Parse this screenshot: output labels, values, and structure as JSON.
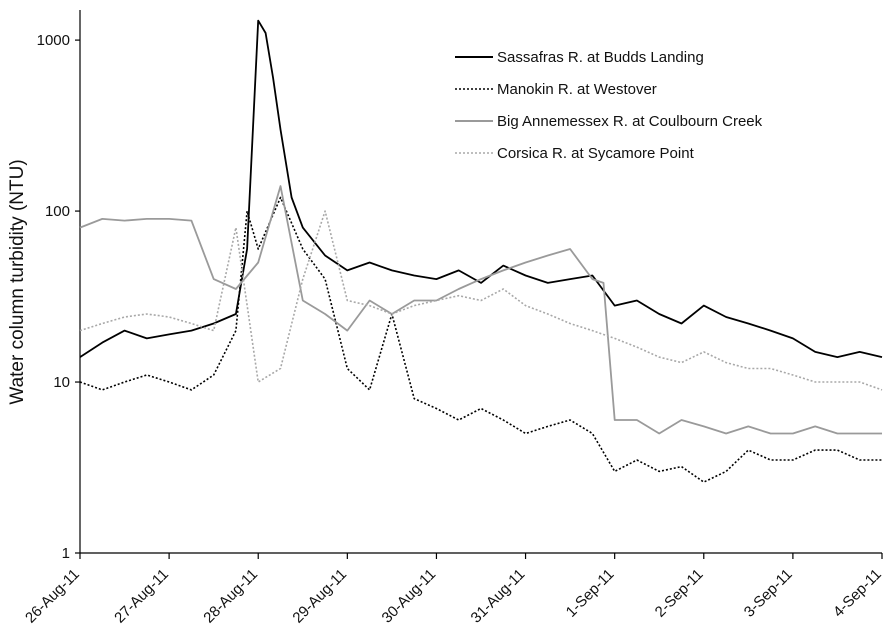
{
  "chart_data": {
    "type": "line",
    "title": "",
    "xlabel": "",
    "ylabel": "Water column turbidity (NTU)",
    "y_scale": "log",
    "ylim": [
      1,
      1500
    ],
    "y_ticks": [
      1,
      10,
      100,
      1000
    ],
    "y_tick_labels": [
      "1",
      "10",
      "100",
      "1000"
    ],
    "x_tick_labels": [
      "26-Aug-11",
      "27-Aug-11",
      "28-Aug-11",
      "29-Aug-11",
      "30-Aug-11",
      "31-Aug-11",
      "1-Sep-11",
      "2-Sep-11",
      "3-Sep-11",
      "4-Sep-11"
    ],
    "xlim": [
      "26-Aug-11",
      "4-Sep-11"
    ],
    "grid": false,
    "legend_position": "top-right",
    "series": [
      {
        "name": "Sassafras R. at Budds Landing",
        "color": "#000000",
        "style": "solid",
        "x": [
          "26-Aug-11",
          "26-Aug-11 06:00",
          "26-Aug-11 12:00",
          "26-Aug-11 18:00",
          "27-Aug-11",
          "27-Aug-11 06:00",
          "27-Aug-11 12:00",
          "27-Aug-11 18:00",
          "27-Aug-11 21:00",
          "28-Aug-11 00:00",
          "28-Aug-11 02:00",
          "28-Aug-11 04:00",
          "28-Aug-11 06:00",
          "28-Aug-11 09:00",
          "28-Aug-11 12:00",
          "28-Aug-11 18:00",
          "29-Aug-11",
          "29-Aug-11 06:00",
          "29-Aug-11 12:00",
          "29-Aug-11 18:00",
          "30-Aug-11",
          "30-Aug-11 06:00",
          "30-Aug-11 12:00",
          "30-Aug-11 18:00",
          "31-Aug-11",
          "31-Aug-11 06:00",
          "31-Aug-11 12:00",
          "31-Aug-11 18:00",
          "1-Sep-11",
          "1-Sep-11 06:00",
          "1-Sep-11 12:00",
          "1-Sep-11 18:00",
          "2-Sep-11",
          "2-Sep-11 06:00",
          "2-Sep-11 12:00",
          "2-Sep-11 18:00",
          "3-Sep-11",
          "3-Sep-11 06:00",
          "3-Sep-11 12:00",
          "3-Sep-11 18:00",
          "4-Sep-11"
        ],
        "values": [
          14,
          17,
          20,
          18,
          19,
          20,
          22,
          25,
          60,
          1300,
          1100,
          600,
          300,
          120,
          80,
          55,
          45,
          50,
          45,
          42,
          40,
          45,
          38,
          48,
          42,
          38,
          40,
          42,
          28,
          30,
          25,
          22,
          28,
          24,
          22,
          20,
          18,
          15,
          14,
          15,
          14
        ]
      },
      {
        "name": "Manokin R. at Westover",
        "color": "#000000",
        "style": "dotted",
        "x": [
          "26-Aug-11",
          "26-Aug-11 06:00",
          "26-Aug-11 12:00",
          "26-Aug-11 18:00",
          "27-Aug-11",
          "27-Aug-11 06:00",
          "27-Aug-11 12:00",
          "27-Aug-11 18:00",
          "27-Aug-11 21:00",
          "28-Aug-11 00:00",
          "28-Aug-11 06:00",
          "28-Aug-11 12:00",
          "28-Aug-11 18:00",
          "29-Aug-11",
          "29-Aug-11 06:00",
          "29-Aug-11 12:00",
          "29-Aug-11 18:00",
          "30-Aug-11",
          "30-Aug-11 06:00",
          "30-Aug-11 12:00",
          "30-Aug-11 18:00",
          "31-Aug-11",
          "31-Aug-11 06:00",
          "31-Aug-11 12:00",
          "31-Aug-11 18:00",
          "1-Sep-11",
          "1-Sep-11 06:00",
          "1-Sep-11 12:00",
          "1-Sep-11 18:00",
          "2-Sep-11",
          "2-Sep-11 06:00",
          "2-Sep-11 12:00",
          "2-Sep-11 18:00",
          "3-Sep-11",
          "3-Sep-11 06:00",
          "3-Sep-11 12:00",
          "3-Sep-11 18:00",
          "4-Sep-11"
        ],
        "values": [
          10,
          9,
          10,
          11,
          10,
          9,
          11,
          20,
          100,
          60,
          120,
          60,
          40,
          12,
          9,
          25,
          8,
          7,
          6,
          7,
          6,
          5,
          5.5,
          6,
          5,
          3,
          3.5,
          3,
          3.2,
          2.6,
          3,
          4,
          3.5,
          3.5,
          4,
          4,
          3.5,
          3.5
        ]
      },
      {
        "name": "Big Annemessex R. at Coulbourn Creek",
        "color": "#9a9a9a",
        "style": "solid",
        "x": [
          "26-Aug-11",
          "26-Aug-11 06:00",
          "26-Aug-11 12:00",
          "26-Aug-11 18:00",
          "27-Aug-11",
          "27-Aug-11 06:00",
          "27-Aug-11 12:00",
          "27-Aug-11 18:00",
          "28-Aug-11 00:00",
          "28-Aug-11 06:00",
          "28-Aug-11 12:00",
          "28-Aug-11 18:00",
          "29-Aug-11",
          "29-Aug-11 06:00",
          "29-Aug-11 12:00",
          "29-Aug-11 18:00",
          "30-Aug-11",
          "30-Aug-11 06:00",
          "30-Aug-11 12:00",
          "30-Aug-11 18:00",
          "31-Aug-11",
          "31-Aug-11 06:00",
          "31-Aug-11 12:00",
          "31-Aug-11 18:00",
          "31-Aug-11 21:00",
          "1-Sep-11",
          "1-Sep-11 06:00",
          "1-Sep-11 12:00",
          "1-Sep-11 18:00",
          "2-Sep-11",
          "2-Sep-11 06:00",
          "2-Sep-11 12:00",
          "2-Sep-11 18:00",
          "3-Sep-11",
          "3-Sep-11 06:00",
          "3-Sep-11 12:00",
          "3-Sep-11 18:00",
          "4-Sep-11"
        ],
        "values": [
          80,
          90,
          88,
          90,
          90,
          88,
          40,
          35,
          50,
          140,
          30,
          25,
          20,
          30,
          25,
          30,
          30,
          35,
          40,
          45,
          50,
          55,
          60,
          40,
          38,
          6,
          6,
          5,
          6,
          5.5,
          5,
          5.5,
          5,
          5,
          5.5,
          5,
          5,
          5
        ]
      },
      {
        "name": "Corsica R. at Sycamore Point",
        "color": "#a8a8a8",
        "style": "dotted",
        "x": [
          "26-Aug-11",
          "26-Aug-11 06:00",
          "26-Aug-11 12:00",
          "26-Aug-11 18:00",
          "27-Aug-11",
          "27-Aug-11 06:00",
          "27-Aug-11 12:00",
          "27-Aug-11 18:00",
          "28-Aug-11 00:00",
          "28-Aug-11 06:00",
          "28-Aug-11 12:00",
          "28-Aug-11 18:00",
          "29-Aug-11",
          "29-Aug-11 06:00",
          "29-Aug-11 12:00",
          "29-Aug-11 18:00",
          "30-Aug-11",
          "30-Aug-11 06:00",
          "30-Aug-11 12:00",
          "30-Aug-11 18:00",
          "31-Aug-11",
          "31-Aug-11 06:00",
          "31-Aug-11 12:00",
          "31-Aug-11 18:00",
          "1-Sep-11",
          "1-Sep-11 06:00",
          "1-Sep-11 12:00",
          "1-Sep-11 18:00",
          "2-Sep-11",
          "2-Sep-11 06:00",
          "2-Sep-11 12:00",
          "2-Sep-11 18:00",
          "3-Sep-11",
          "3-Sep-11 06:00",
          "3-Sep-11 12:00",
          "3-Sep-11 18:00",
          "4-Sep-11"
        ],
        "values": [
          20,
          22,
          24,
          25,
          24,
          22,
          20,
          80,
          10,
          12,
          40,
          100,
          30,
          28,
          25,
          28,
          30,
          32,
          30,
          35,
          28,
          25,
          22,
          20,
          18,
          16,
          14,
          13,
          15,
          13,
          12,
          12,
          11,
          10,
          10,
          10,
          9
        ]
      }
    ]
  }
}
